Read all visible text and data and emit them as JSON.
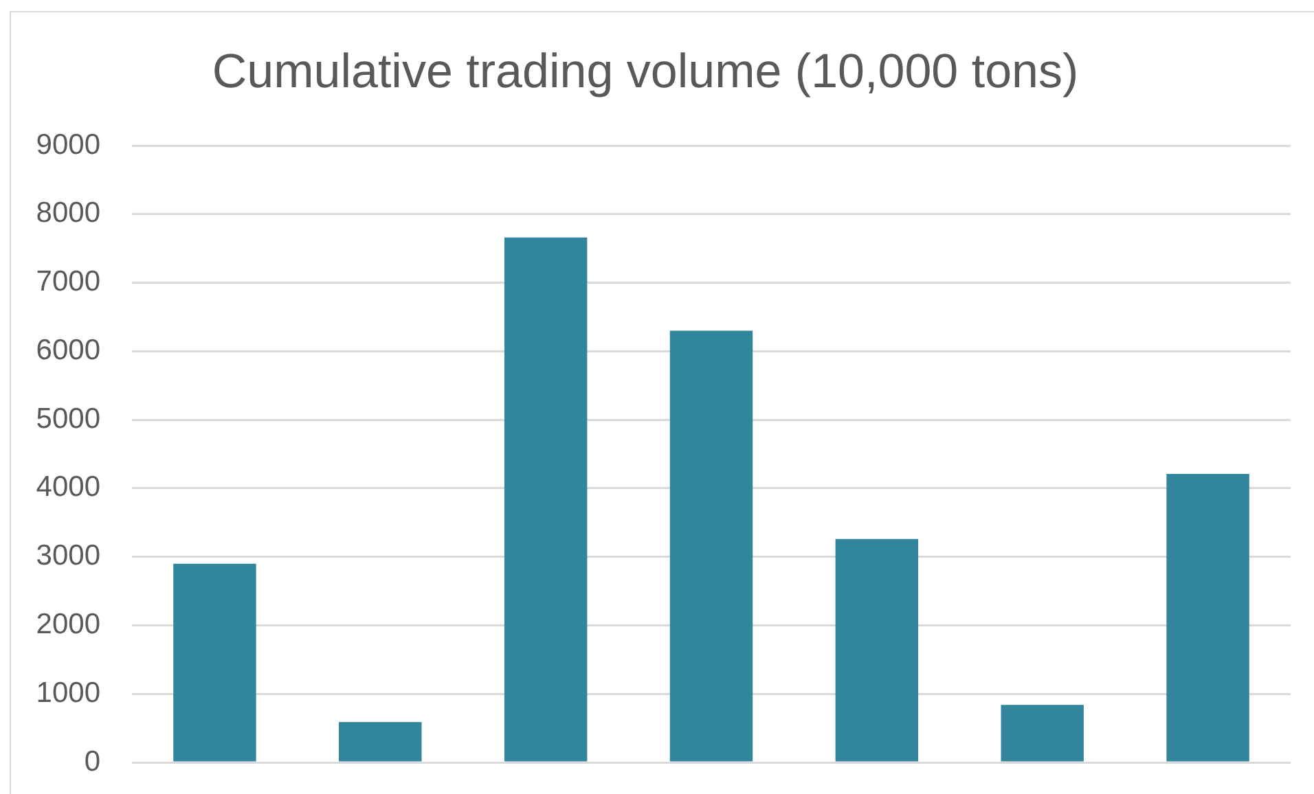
{
  "chart_data": {
    "type": "bar",
    "title": "Cumulative trading volume (10,000 tons)",
    "categories": [
      null,
      null,
      null,
      null,
      null,
      null,
      null
    ],
    "values": [
      2900,
      590,
      7660,
      6300,
      3260,
      840,
      4210
    ],
    "color": "#31859c",
    "ylim": [
      0,
      9000
    ],
    "yticks": [
      0,
      1000,
      2000,
      3000,
      4000,
      5000,
      6000,
      7000,
      8000,
      9000
    ],
    "grid": "y",
    "tick_labels": "y"
  }
}
